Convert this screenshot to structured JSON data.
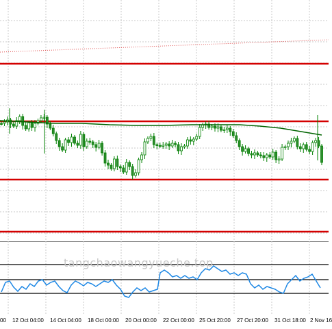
{
  "watermark": {
    "text": "tangchaowangyueche.top"
  },
  "time_axis": {
    "labels": [
      "00",
      "12 Oct 04:00",
      "14 Oct 04:00",
      "18 Oct 00:00",
      "20 Oct 00:00",
      "22 Oct 00:00",
      "25 Oct 20:00",
      "27 Oct 20:00",
      "31 Oct 18:00",
      "2 Nov 16"
    ]
  },
  "colors": {
    "background": "#ffffff",
    "grid": "#c8c8c8",
    "bull_candle": "#2e8b2e",
    "bear_candle": "#008000",
    "support_resistance": "#d40000",
    "moving_average": "#006400",
    "trendline": "#e05050",
    "oscillator_line": "#1e88e5",
    "oscillator_levels": "#000000"
  },
  "chart_data": {
    "type": "candlestick",
    "title": "",
    "xlabel": "",
    "ylabel": "",
    "grid": true,
    "legend": "none"
  }
}
